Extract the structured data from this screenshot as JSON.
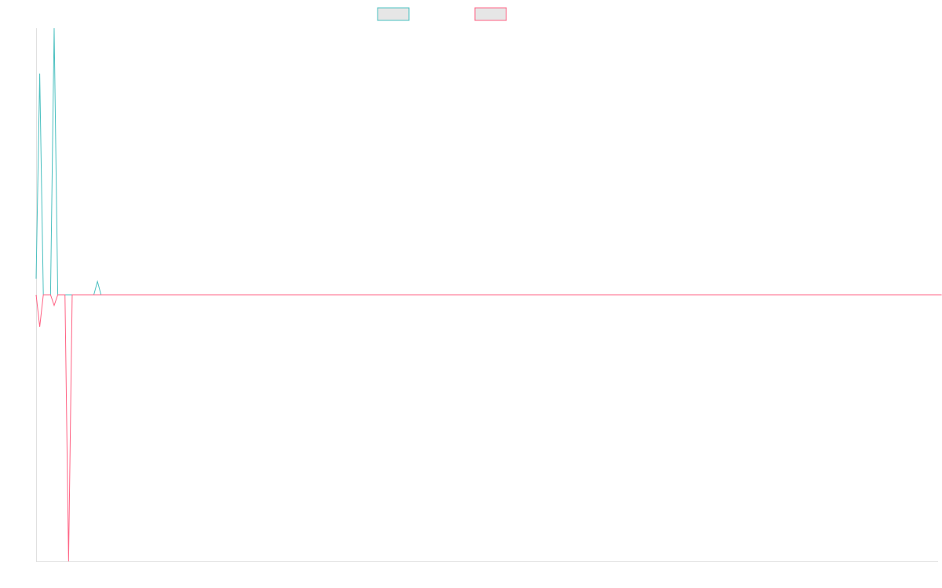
{
  "colors": {
    "series_a": "#4bc0c0",
    "series_b": "#ff6384",
    "legend_fill": "#e6e6e6",
    "axis": "#e0e0e0"
  },
  "chart_data": {
    "type": "line",
    "title": "",
    "xlabel": "",
    "ylabel": "",
    "legend_placement": "top-center",
    "grid": false,
    "xlim": [
      0,
      250
    ],
    "ylim": [
      -100,
      100
    ],
    "series": [
      {
        "color": "#4bc0c0",
        "values": [
          6,
          83,
          0,
          0,
          0,
          108,
          0,
          0,
          0,
          0,
          0,
          0,
          0,
          0,
          0,
          0,
          0,
          5,
          0,
          0,
          0,
          0,
          0,
          0,
          0,
          0,
          0,
          0,
          0,
          0,
          0,
          0,
          0,
          0,
          0,
          0,
          0,
          0,
          0,
          0,
          0,
          0,
          0,
          0,
          0,
          0,
          0,
          0,
          0,
          0,
          0,
          0,
          0,
          0,
          0,
          0,
          0,
          0,
          0,
          0,
          0,
          0,
          0,
          0,
          0,
          0,
          0,
          0,
          0,
          0,
          0,
          0,
          0,
          0,
          0,
          0,
          0,
          0,
          0,
          0,
          0,
          0,
          0,
          0,
          0,
          0,
          0,
          0,
          0,
          0,
          0,
          0,
          0,
          0,
          0,
          0,
          0,
          0,
          0,
          0,
          0,
          0,
          0,
          0,
          0,
          0,
          0,
          0,
          0,
          0,
          0,
          0,
          0,
          0,
          0,
          0,
          0,
          0,
          0,
          0,
          0,
          0,
          0,
          0,
          0,
          0,
          0,
          0,
          0,
          0,
          0,
          0,
          0,
          0,
          0,
          0,
          0,
          0,
          0,
          0,
          0,
          0,
          0,
          0,
          0,
          0,
          0,
          0,
          0,
          0,
          0,
          0,
          0,
          0,
          0,
          0,
          0,
          0,
          0,
          0,
          0,
          0,
          0,
          0,
          0,
          0,
          0,
          0,
          0,
          0,
          0,
          0,
          0,
          0,
          0,
          0,
          0,
          0,
          0,
          0,
          0,
          0,
          0,
          0,
          0,
          0,
          0,
          0,
          0,
          0,
          0,
          0,
          0,
          0,
          0,
          0,
          0,
          0,
          0,
          0,
          0,
          0,
          0,
          0,
          0,
          0,
          0,
          0,
          0,
          0,
          0,
          0,
          0,
          0,
          0,
          0,
          0,
          0,
          0,
          0,
          0,
          0,
          0,
          0,
          0,
          0,
          0,
          0,
          0,
          0,
          0,
          0,
          0,
          0,
          0,
          0,
          0,
          0,
          0,
          0,
          0,
          0,
          0,
          0,
          0,
          0,
          0,
          0,
          0,
          0,
          0
        ]
      },
      {
        "color": "#ff6384",
        "values": [
          0,
          -12,
          0,
          0,
          0,
          -4,
          0,
          0,
          0,
          -100,
          0,
          0,
          0,
          0,
          0,
          0,
          0,
          0,
          0,
          0,
          0,
          0,
          0,
          0,
          0,
          0,
          0,
          0,
          0,
          0,
          0,
          0,
          0,
          0,
          0,
          0,
          0,
          0,
          0,
          0,
          0,
          0,
          0,
          0,
          0,
          0,
          0,
          0,
          0,
          0,
          0,
          0,
          0,
          0,
          0,
          0,
          0,
          0,
          0,
          0,
          0,
          0,
          0,
          0,
          0,
          0,
          0,
          0,
          0,
          0,
          0,
          0,
          0,
          0,
          0,
          0,
          0,
          0,
          0,
          0,
          0,
          0,
          0,
          0,
          0,
          0,
          0,
          0,
          0,
          0,
          0,
          0,
          0,
          0,
          0,
          0,
          0,
          0,
          0,
          0,
          0,
          0,
          0,
          0,
          0,
          0,
          0,
          0,
          0,
          0,
          0,
          0,
          0,
          0,
          0,
          0,
          0,
          0,
          0,
          0,
          0,
          0,
          0,
          0,
          0,
          0,
          0,
          0,
          0,
          0,
          0,
          0,
          0,
          0,
          0,
          0,
          0,
          0,
          0,
          0,
          0,
          0,
          0,
          0,
          0,
          0,
          0,
          0,
          0,
          0,
          0,
          0,
          0,
          0,
          0,
          0,
          0,
          0,
          0,
          0,
          0,
          0,
          0,
          0,
          0,
          0,
          0,
          0,
          0,
          0,
          0,
          0,
          0,
          0,
          0,
          0,
          0,
          0,
          0,
          0,
          0,
          0,
          0,
          0,
          0,
          0,
          0,
          0,
          0,
          0,
          0,
          0,
          0,
          0,
          0,
          0,
          0,
          0,
          0,
          0,
          0,
          0,
          0,
          0,
          0,
          0,
          0,
          0,
          0,
          0,
          0,
          0,
          0,
          0,
          0,
          0,
          0,
          0,
          0,
          0,
          0,
          0,
          0,
          0,
          0,
          0,
          0,
          0,
          0,
          0,
          0,
          0,
          0,
          0,
          0,
          0,
          0,
          0,
          0,
          0,
          0,
          0,
          0,
          0,
          0,
          0,
          0,
          0,
          0,
          0,
          0,
          0
        ]
      }
    ]
  }
}
